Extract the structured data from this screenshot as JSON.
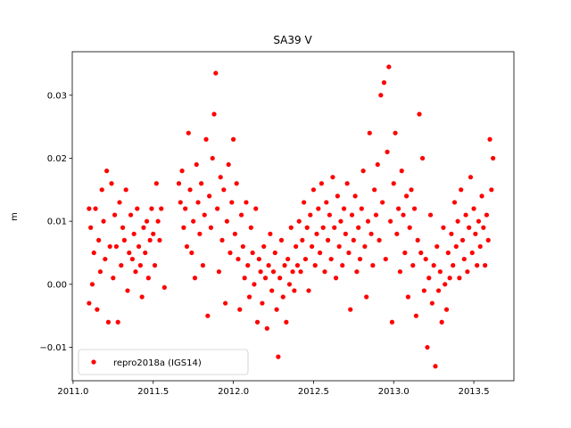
{
  "chart_data": {
    "type": "scatter",
    "title": "SA39 V",
    "y_label": "m",
    "xlim": [
      2010.995,
      2013.75
    ],
    "ylim": [
      -0.0153,
      0.0369
    ],
    "xticks": [
      {
        "value": 2011.0,
        "label": "2011.0"
      },
      {
        "value": 2011.5,
        "label": "2011.5"
      },
      {
        "value": 2012.0,
        "label": "2012.0"
      },
      {
        "value": 2012.5,
        "label": "2012.5"
      },
      {
        "value": 2013.0,
        "label": "2013.0"
      },
      {
        "value": 2013.5,
        "label": "2013.5"
      }
    ],
    "yticks": [
      {
        "value": -0.01,
        "label": "−0.01"
      },
      {
        "value": 0,
        "label": "0.00"
      },
      {
        "value": 0.01,
        "label": "0.01"
      },
      {
        "value": 0.02,
        "label": "0.02"
      },
      {
        "value": 0.03,
        "label": "0.03"
      }
    ],
    "legend": "lower left",
    "series": [
      {
        "name": "repro2018a (IGS14)",
        "color": "#ff0000",
        "x": [
          2011.1,
          2011.1,
          2011.11,
          2011.12,
          2011.13,
          2011.14,
          2011.15,
          2011.16,
          2011.17,
          2011.18,
          2011.19,
          2011.2,
          2011.21,
          2011.22,
          2011.23,
          2011.24,
          2011.25,
          2011.26,
          2011.27,
          2011.28,
          2011.29,
          2011.3,
          2011.31,
          2011.32,
          2011.33,
          2011.34,
          2011.35,
          2011.36,
          2011.37,
          2011.38,
          2011.39,
          2011.4,
          2011.41,
          2011.42,
          2011.43,
          2011.44,
          2011.45,
          2011.46,
          2011.47,
          2011.48,
          2011.49,
          2011.5,
          2011.51,
          2011.52,
          2011.53,
          2011.54,
          2011.55,
          2011.57,
          2011.66,
          2011.67,
          2011.68,
          2011.69,
          2011.7,
          2011.71,
          2011.72,
          2011.73,
          2011.74,
          2011.75,
          2011.76,
          2011.77,
          2011.78,
          2011.79,
          2011.8,
          2011.81,
          2011.82,
          2011.83,
          2011.84,
          2011.85,
          2011.86,
          2011.87,
          2011.88,
          2011.89,
          2011.9,
          2011.91,
          2011.92,
          2011.93,
          2011.94,
          2011.95,
          2011.96,
          2011.97,
          2011.98,
          2011.99,
          2012.0,
          2012.01,
          2012.02,
          2012.03,
          2012.04,
          2012.05,
          2012.06,
          2012.07,
          2012.08,
          2012.09,
          2012.1,
          2012.11,
          2012.12,
          2012.13,
          2012.14,
          2012.15,
          2012.16,
          2012.17,
          2012.18,
          2012.19,
          2012.2,
          2012.21,
          2012.22,
          2012.23,
          2012.24,
          2012.25,
          2012.26,
          2012.27,
          2012.28,
          2012.29,
          2012.3,
          2012.31,
          2012.32,
          2012.33,
          2012.34,
          2012.35,
          2012.36,
          2012.37,
          2012.38,
          2012.39,
          2012.4,
          2012.41,
          2012.42,
          2012.43,
          2012.44,
          2012.45,
          2012.46,
          2012.47,
          2012.48,
          2012.49,
          2012.5,
          2012.51,
          2012.52,
          2012.53,
          2012.54,
          2012.55,
          2012.56,
          2012.57,
          2012.58,
          2012.59,
          2012.6,
          2012.61,
          2012.62,
          2012.63,
          2012.64,
          2012.65,
          2012.66,
          2012.67,
          2012.68,
          2012.69,
          2012.7,
          2012.71,
          2012.72,
          2012.73,
          2012.74,
          2012.75,
          2012.76,
          2012.77,
          2012.78,
          2012.79,
          2012.8,
          2012.81,
          2012.82,
          2012.83,
          2012.84,
          2012.85,
          2012.86,
          2012.87,
          2012.88,
          2012.89,
          2012.9,
          2012.91,
          2012.92,
          2012.93,
          2012.94,
          2012.95,
          2012.96,
          2012.97,
          2012.98,
          2012.99,
          2013.0,
          2013.01,
          2013.02,
          2013.03,
          2013.04,
          2013.05,
          2013.06,
          2013.07,
          2013.08,
          2013.09,
          2013.1,
          2013.11,
          2013.12,
          2013.13,
          2013.14,
          2013.15,
          2013.16,
          2013.17,
          2013.18,
          2013.19,
          2013.2,
          2013.21,
          2013.22,
          2013.23,
          2013.24,
          2013.25,
          2013.26,
          2013.27,
          2013.28,
          2013.29,
          2013.3,
          2013.31,
          2013.32,
          2013.33,
          2013.34,
          2013.35,
          2013.36,
          2013.37,
          2013.38,
          2013.39,
          2013.4,
          2013.41,
          2013.42,
          2013.43,
          2013.44,
          2013.45,
          2013.46,
          2013.47,
          2013.48,
          2013.49,
          2013.5,
          2013.51,
          2013.52,
          2013.53,
          2013.54,
          2013.55,
          2013.56,
          2013.57,
          2013.58,
          2013.59,
          2013.6,
          2013.61,
          2013.62
        ],
        "values": [
          0.012,
          -0.003,
          0.009,
          0.0,
          0.005,
          0.012,
          -0.004,
          0.007,
          0.002,
          0.015,
          0.01,
          0.004,
          0.018,
          -0.006,
          0.006,
          0.016,
          0.001,
          0.011,
          0.006,
          -0.006,
          0.013,
          0.003,
          0.009,
          0.007,
          0.015,
          -0.001,
          0.005,
          0.011,
          0.004,
          0.008,
          0.002,
          0.012,
          0.006,
          0.003,
          -0.002,
          0.009,
          0.005,
          0.01,
          0.001,
          0.007,
          0.012,
          0.008,
          0.003,
          0.016,
          0.01,
          0.007,
          0.012,
          -0.0005,
          0.016,
          0.013,
          0.018,
          0.009,
          0.012,
          0.006,
          0.024,
          0.015,
          0.005,
          0.01,
          0.001,
          0.019,
          0.013,
          0.008,
          0.016,
          0.003,
          0.011,
          0.023,
          -0.005,
          0.014,
          0.009,
          0.02,
          0.027,
          0.0335,
          0.012,
          0.002,
          0.017,
          0.007,
          0.015,
          -0.003,
          0.01,
          0.019,
          0.005,
          0.013,
          0.023,
          0.008,
          0.016,
          0.004,
          -0.004,
          0.011,
          0.006,
          0.001,
          0.013,
          0.003,
          -0.002,
          0.009,
          0.005,
          0.0,
          0.012,
          -0.006,
          0.004,
          0.002,
          -0.003,
          0.006,
          0.001,
          -0.007,
          0.003,
          0.008,
          -0.001,
          0.002,
          0.005,
          -0.004,
          -0.0115,
          0.001,
          0.007,
          -0.002,
          0.003,
          -0.006,
          0.004,
          0.0,
          0.009,
          0.002,
          -0.001,
          0.006,
          0.003,
          0.01,
          0.002,
          0.007,
          0.013,
          0.004,
          0.009,
          -0.001,
          0.011,
          0.006,
          0.015,
          0.003,
          0.008,
          0.012,
          0.005,
          0.016,
          0.009,
          0.002,
          0.013,
          0.007,
          0.011,
          0.004,
          0.017,
          0.009,
          0.001,
          0.014,
          0.006,
          0.01,
          0.003,
          0.012,
          0.008,
          0.016,
          0.005,
          -0.004,
          0.011,
          0.007,
          0.014,
          0.002,
          0.009,
          0.004,
          0.012,
          0.018,
          0.006,
          -0.002,
          0.01,
          0.024,
          0.008,
          0.003,
          0.015,
          0.011,
          0.019,
          0.007,
          0.03,
          0.013,
          0.032,
          0.004,
          0.021,
          0.0345,
          0.01,
          -0.006,
          0.016,
          0.024,
          0.008,
          0.012,
          0.002,
          0.018,
          0.011,
          0.005,
          0.014,
          -0.002,
          0.009,
          0.015,
          0.003,
          0.012,
          -0.005,
          0.007,
          0.027,
          0.005,
          0.02,
          -0.001,
          0.004,
          -0.01,
          0.001,
          0.011,
          -0.003,
          0.003,
          -0.013,
          0.006,
          -0.001,
          0.002,
          -0.006,
          0.009,
          0.0,
          -0.004,
          0.005,
          0.001,
          0.008,
          0.003,
          0.013,
          0.006,
          0.01,
          0.001,
          0.015,
          0.007,
          0.004,
          0.011,
          0.002,
          0.009,
          0.017,
          0.005,
          0.012,
          0.008,
          0.003,
          0.01,
          0.006,
          0.014,
          0.009,
          0.003,
          0.011,
          0.007,
          0.023,
          0.015,
          0.02
        ]
      }
    ]
  }
}
